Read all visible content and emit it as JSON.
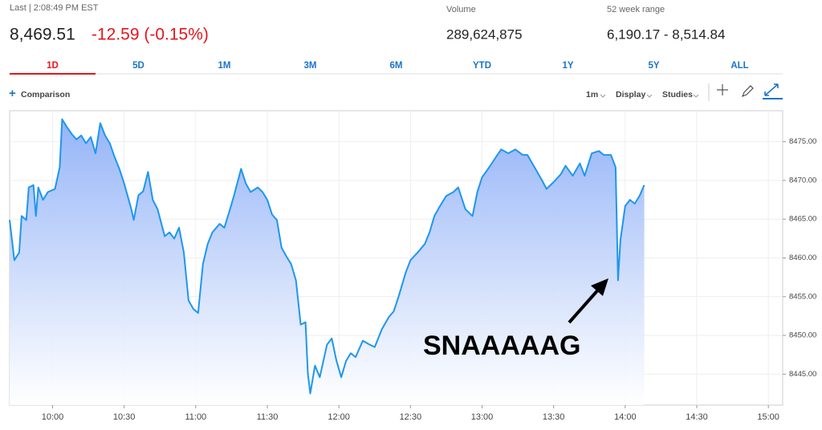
{
  "header": {
    "last": "Last | 2:08:49 PM EST",
    "price": "8,469.51",
    "change": "-12.59 (-0.15%)",
    "volume_label": "Volume",
    "volume": "289,624,875",
    "range_label": "52 week range",
    "range": "6,190.17 - 8,514.84"
  },
  "tabs": {
    "items": [
      "1D",
      "5D",
      "1M",
      "3M",
      "6M",
      "YTD",
      "1Y",
      "5Y",
      "ALL"
    ],
    "active": 0
  },
  "toolbar": {
    "comparison": "Comparison",
    "interval": "1m",
    "display": "Display",
    "studies": "Studies"
  },
  "chart_data": {
    "type": "line",
    "annotation": "SNAAAAAG",
    "x": [
      582,
      584,
      586,
      587,
      589,
      590,
      592,
      593,
      594,
      596,
      598,
      601,
      603,
      604,
      606,
      608,
      610,
      612,
      614,
      616,
      618,
      620,
      622,
      624,
      626,
      628,
      630,
      633,
      634,
      636,
      638,
      640,
      642,
      644,
      647,
      649,
      651,
      653,
      655,
      657,
      659,
      661,
      663,
      665,
      667,
      670,
      672,
      674,
      676,
      679,
      681,
      683,
      686,
      688,
      690,
      692,
      694,
      696,
      698,
      700,
      702,
      704,
      706,
      707,
      708,
      710,
      712,
      715,
      717,
      719,
      721,
      723,
      725,
      727,
      730,
      733,
      735,
      738,
      741,
      743,
      745,
      748,
      750,
      753,
      756,
      758,
      760,
      762,
      765,
      768,
      770,
      773,
      776,
      778,
      780,
      783,
      786,
      788,
      791,
      794,
      797,
      799,
      802,
      805,
      807,
      810,
      813,
      815,
      818,
      821,
      823,
      826,
      829,
      831,
      834,
      836,
      837,
      838,
      840,
      842,
      844,
      846,
      848
    ],
    "series": [
      {
        "color": "#1e96f0",
        "fill": "#8fb0f7",
        "values": [
          8464.9,
          8459.7,
          8460.7,
          8465.4,
          8464.9,
          8469.1,
          8469.4,
          8465.4,
          8469.1,
          8467.5,
          8468.5,
          8468.9,
          8471.7,
          8477.9,
          8476.9,
          8476.0,
          8475.3,
          8475.8,
          8474.8,
          8475.6,
          8473.5,
          8477.4,
          8475.8,
          8474.8,
          8473.0,
          8471.5,
          8469.6,
          8466.3,
          8464.9,
          8468.1,
          8468.6,
          8471.1,
          8467.5,
          8466.3,
          8462.8,
          8463.3,
          8462.5,
          8463.9,
          8460.7,
          8454.5,
          8453.4,
          8452.9,
          8459.2,
          8461.8,
          8463.3,
          8464.4,
          8463.9,
          8465.9,
          8468.0,
          8471.5,
          8469.6,
          8468.5,
          8469.1,
          8468.5,
          8467.5,
          8465.6,
          8464.9,
          8461.3,
          8460.2,
          8459.2,
          8457.1,
          8451.4,
          8451.7,
          8445.1,
          8442.5,
          8446.1,
          8444.6,
          8448.8,
          8449.6,
          8446.7,
          8444.6,
          8446.7,
          8447.7,
          8447.2,
          8449.3,
          8448.8,
          8448.5,
          8450.8,
          8452.4,
          8453.1,
          8455.0,
          8458.1,
          8459.7,
          8460.7,
          8461.8,
          8463.3,
          8465.4,
          8466.5,
          8468.0,
          8468.5,
          8469.1,
          8466.3,
          8465.4,
          8468.5,
          8470.4,
          8471.7,
          8473.1,
          8474.0,
          8473.5,
          8474.0,
          8473.3,
          8473.3,
          8471.7,
          8470.1,
          8468.9,
          8469.8,
          8470.8,
          8471.9,
          8470.6,
          8472.2,
          8470.6,
          8473.5,
          8473.8,
          8473.3,
          8473.3,
          8471.7,
          8457.1,
          8462.3,
          8466.7,
          8467.5,
          8467.0,
          8468.0,
          8469.4
        ]
      }
    ],
    "xlim": [
      582,
      906
    ],
    "xticks": [
      {
        "value": 600,
        "label": "10:00"
      },
      {
        "value": 630,
        "label": "10:30"
      },
      {
        "value": 660,
        "label": "11:00"
      },
      {
        "value": 690,
        "label": "11:30"
      },
      {
        "value": 720,
        "label": "12:00"
      },
      {
        "value": 750,
        "label": "12:30"
      },
      {
        "value": 780,
        "label": "13:00"
      },
      {
        "value": 810,
        "label": "13:30"
      },
      {
        "value": 840,
        "label": "14:00"
      },
      {
        "value": 870,
        "label": "14:30"
      },
      {
        "value": 900,
        "label": "15:00"
      }
    ],
    "ylim": [
      8441,
      8479
    ],
    "yticks": [
      {
        "value": 8445,
        "label": "8445.00"
      },
      {
        "value": 8450,
        "label": "8450.00"
      },
      {
        "value": 8455,
        "label": "8455.00"
      },
      {
        "value": 8460,
        "label": "8460.00"
      },
      {
        "value": 8465,
        "label": "8465.00"
      },
      {
        "value": 8470,
        "label": "8470.00"
      },
      {
        "value": 8475,
        "label": "8475.00"
      }
    ],
    "grid": true
  }
}
